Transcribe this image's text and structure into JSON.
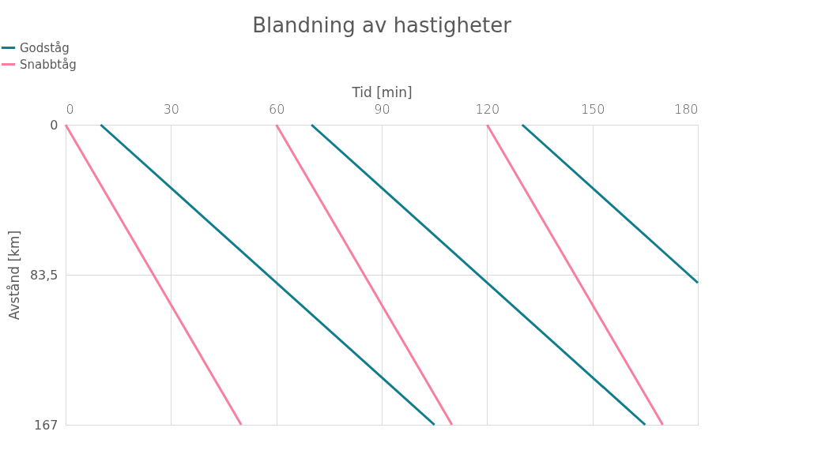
{
  "chart_data": {
    "type": "line",
    "title": "Blandning av hastigheter",
    "xlabel": "Tid [min]",
    "ylabel": "Avstånd [km]",
    "xlim": [
      0,
      180
    ],
    "xticks": [
      0,
      30,
      60,
      90,
      120,
      150,
      180
    ],
    "ylim": [
      167,
      0
    ],
    "yticks": [
      0,
      {
        "value": 83.5,
        "label": "83,5"
      },
      167
    ],
    "grid": true,
    "legend": "top left",
    "line_style": "solid",
    "marker": "none",
    "series": [
      {
        "name": "Godståg",
        "color": "#0f7d8c",
        "x": [
          10,
          105,
          null,
          70,
          165,
          null,
          130,
          180
        ],
        "values": [
          0,
          167,
          null,
          0,
          167,
          null,
          0,
          88
        ]
      },
      {
        "name": "Snabbtåg",
        "color": "#f7809f",
        "x": [
          0,
          50,
          null,
          60,
          110,
          null,
          120,
          170
        ],
        "values": [
          0,
          167,
          null,
          0,
          167,
          null,
          0,
          167
        ]
      }
    ]
  }
}
